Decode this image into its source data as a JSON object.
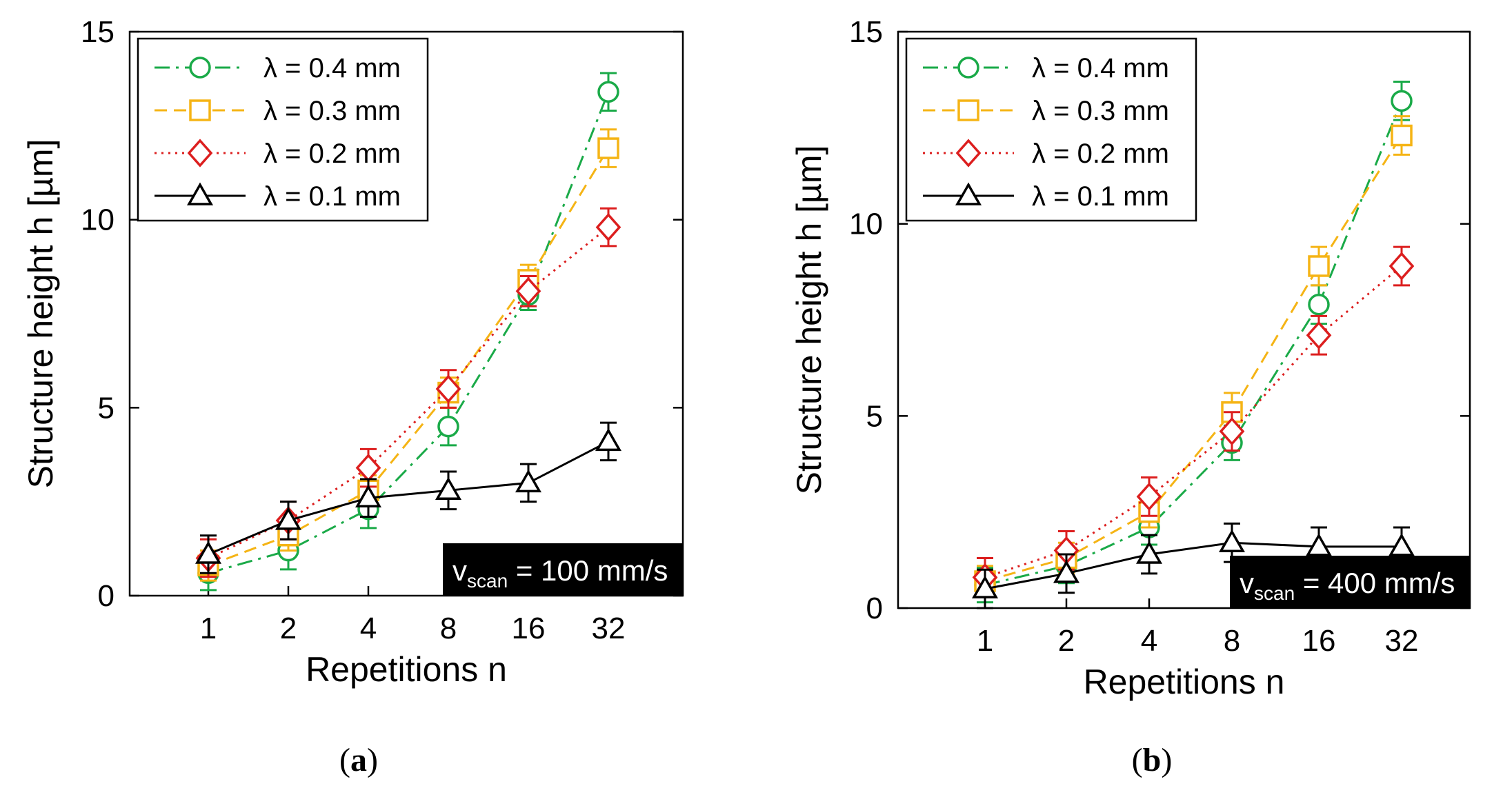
{
  "chart_data": [
    {
      "type": "line",
      "panel_label": "a",
      "xlabel": "Repetitions n",
      "ylabel": "Structure height h [µm]",
      "categories": [
        "1",
        "2",
        "4",
        "8",
        "16",
        "32"
      ],
      "yticks": [
        "0",
        "5",
        "10",
        "15"
      ],
      "ylim": [
        0,
        15
      ],
      "annotation": {
        "prefix": "v",
        "subscript": "scan",
        "suffix": " = 100 mm/s"
      },
      "legend_position": "top-left",
      "series": [
        {
          "name": "λ = 0.4 mm",
          "color": "#1aaa48",
          "dash": "dashdot",
          "marker": "circle",
          "values": [
            0.6,
            1.2,
            2.3,
            4.5,
            8.0,
            13.4
          ],
          "errors": [
            0.45,
            0.5,
            0.5,
            0.5,
            0.4,
            0.5
          ]
        },
        {
          "name": "λ = 0.3 mm",
          "color": "#f5b415",
          "dash": "dashed",
          "marker": "square",
          "values": [
            0.8,
            1.6,
            2.8,
            5.4,
            8.4,
            11.9
          ],
          "errors": [
            0.4,
            0.4,
            0.4,
            0.4,
            0.4,
            0.5
          ]
        },
        {
          "name": "λ = 0.2 mm",
          "color": "#dc1e1e",
          "dash": "dotted",
          "marker": "diamond",
          "values": [
            1.0,
            2.0,
            3.4,
            5.5,
            8.1,
            9.8
          ],
          "errors": [
            0.5,
            0.5,
            0.5,
            0.5,
            0.4,
            0.5
          ]
        },
        {
          "name": "λ = 0.1 mm",
          "color": "#000000",
          "dash": "solid",
          "marker": "triangle",
          "values": [
            1.1,
            2.0,
            2.6,
            2.8,
            3.0,
            4.1
          ],
          "errors": [
            0.5,
            0.5,
            0.5,
            0.5,
            0.5,
            0.5
          ]
        }
      ]
    },
    {
      "type": "line",
      "panel_label": "b",
      "xlabel": "Repetitions n",
      "ylabel": "Structure height h [µm]",
      "categories": [
        "1",
        "2",
        "4",
        "8",
        "16",
        "32"
      ],
      "yticks": [
        "0",
        "5",
        "10",
        "15"
      ],
      "ylim": [
        0,
        15
      ],
      "annotation": {
        "prefix": "v",
        "subscript": "scan",
        "suffix": " = 400 mm/s"
      },
      "legend_position": "top-left",
      "series": [
        {
          "name": "λ = 0.4 mm",
          "color": "#1aaa48",
          "dash": "dashdot",
          "marker": "circle",
          "values": [
            0.6,
            1.1,
            2.1,
            4.3,
            7.9,
            13.2
          ],
          "errors": [
            0.45,
            0.45,
            0.45,
            0.45,
            0.5,
            0.5
          ]
        },
        {
          "name": "λ = 0.3 mm",
          "color": "#f5b415",
          "dash": "dashed",
          "marker": "square",
          "values": [
            0.7,
            1.3,
            2.5,
            5.1,
            8.9,
            12.3
          ],
          "errors": [
            0.4,
            0.4,
            0.4,
            0.5,
            0.5,
            0.5
          ]
        },
        {
          "name": "λ = 0.2 mm",
          "color": "#dc1e1e",
          "dash": "dotted",
          "marker": "diamond",
          "values": [
            0.8,
            1.5,
            2.9,
            4.6,
            7.1,
            8.9
          ],
          "errors": [
            0.5,
            0.5,
            0.5,
            0.5,
            0.5,
            0.5
          ]
        },
        {
          "name": "λ = 0.1 mm",
          "color": "#000000",
          "dash": "solid",
          "marker": "triangle",
          "values": [
            0.5,
            0.9,
            1.4,
            1.7,
            1.6,
            1.6
          ],
          "errors": [
            0.5,
            0.5,
            0.5,
            0.5,
            0.5,
            0.5
          ]
        }
      ]
    }
  ]
}
